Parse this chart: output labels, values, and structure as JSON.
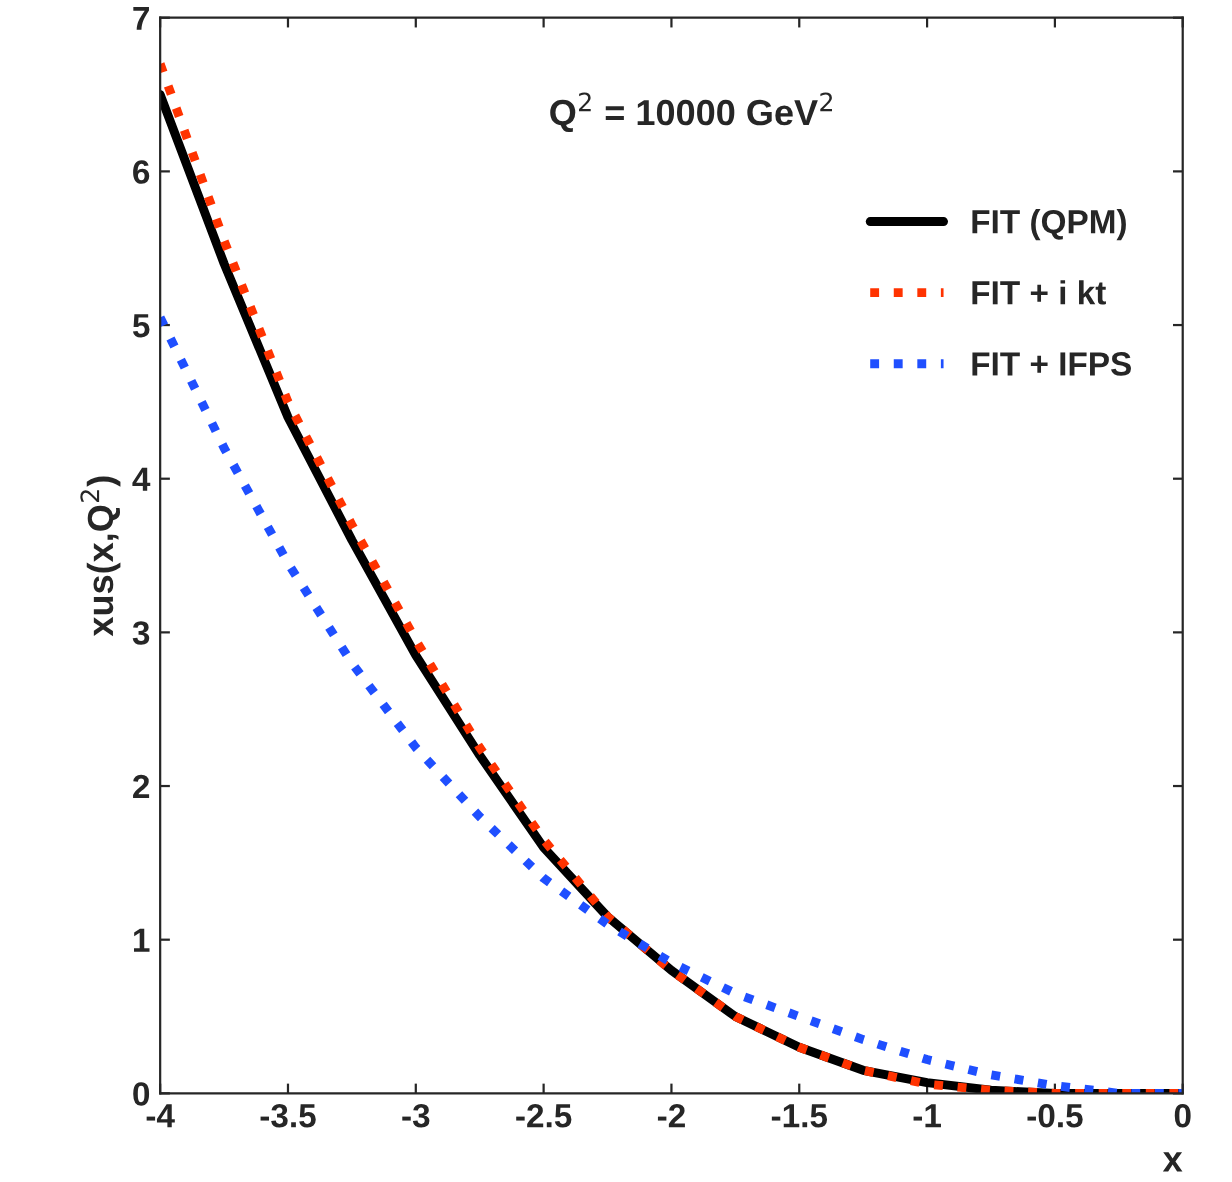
{
  "chart_data": {
    "type": "line",
    "xlabel": "x",
    "ylabel": "xus(x,Q$^{2}$)",
    "annotations": [
      "Q$^{2}$ = 10000 GeV$^{2}$"
    ],
    "x": [
      -4,
      -3.75,
      -3.5,
      -3.25,
      -3,
      -2.75,
      -2.5,
      -2.25,
      -2,
      -1.75,
      -1.5,
      -1.25,
      -1,
      -0.75,
      -0.5,
      -0.25,
      0
    ],
    "series": [
      {
        "name": "FIT (QPM)",
        "color": "#000000",
        "line_style": "solid",
        "values": [
          6.5,
          5.4,
          4.4,
          3.6,
          2.85,
          2.2,
          1.6,
          1.15,
          0.8,
          0.5,
          0.3,
          0.15,
          0.07,
          0.02,
          0.0,
          0.0,
          0.0
        ]
      },
      {
        "name": "FIT + i kt",
        "color": "#ff3300",
        "line_style": "dotted",
        "values": [
          6.7,
          5.55,
          4.5,
          3.7,
          2.95,
          2.25,
          1.65,
          1.15,
          0.8,
          0.5,
          0.3,
          0.15,
          0.06,
          0.02,
          0.0,
          0.0,
          0.0
        ]
      },
      {
        "name": "FIT + IFPS",
        "color": "#1f4fff",
        "line_style": "dotted",
        "values": [
          5.05,
          4.2,
          3.45,
          2.8,
          2.25,
          1.8,
          1.4,
          1.1,
          0.85,
          0.65,
          0.5,
          0.35,
          0.22,
          0.12,
          0.05,
          0.0,
          0.0
        ]
      }
    ],
    "xlim": [
      -4,
      0
    ],
    "xticks": [
      -4,
      -3.5,
      -3,
      -2.5,
      -2,
      -1.5,
      -1,
      -0.5,
      0
    ],
    "ylim": [
      0,
      7
    ],
    "yticks": [
      0,
      1,
      2,
      3,
      4,
      5,
      6,
      7
    ],
    "grid": false,
    "legend": "top right"
  }
}
